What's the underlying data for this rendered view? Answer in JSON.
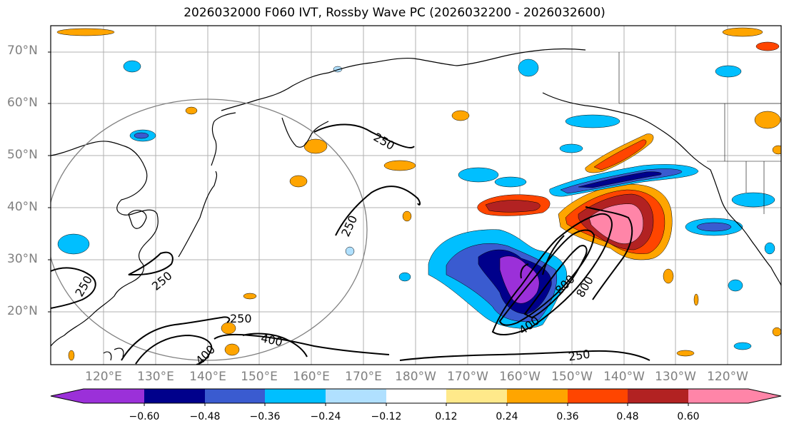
{
  "title": "2026032000 F060 IVT, Rossby Wave PC (2026032200 - 2026032600)",
  "lat_labels": [
    "70°N",
    "60°N",
    "50°N",
    "40°N",
    "30°N",
    "20°N"
  ],
  "lon_labels": [
    "120°E",
    "130°E",
    "140°E",
    "150°E",
    "160°E",
    "170°E",
    "180°W",
    "170°W",
    "160°W",
    "150°W",
    "140°W",
    "130°W",
    "120°W"
  ],
  "colorbar": {
    "ticks": [
      "−0.60",
      "−0.48",
      "−0.36",
      "−0.24",
      "−0.12",
      "0.12",
      "0.24",
      "0.36",
      "0.48",
      "0.60"
    ],
    "colors": [
      "#9b30d9",
      "#00008b",
      "#3a5bd0",
      "#00bfff",
      "#b0e0ff",
      "#ffffff",
      "#ffe98a",
      "#ffa500",
      "#ff4500",
      "#b22222",
      "#ff85a8"
    ]
  },
  "contour_labels": [
    "250",
    "250",
    "250",
    "250",
    "250",
    "250",
    "400",
    "400",
    "400",
    "800",
    "800",
    "250"
  ],
  "colors": {
    "contour": "#000000",
    "grid": "#b0b0b0",
    "circle": "#808080"
  }
}
